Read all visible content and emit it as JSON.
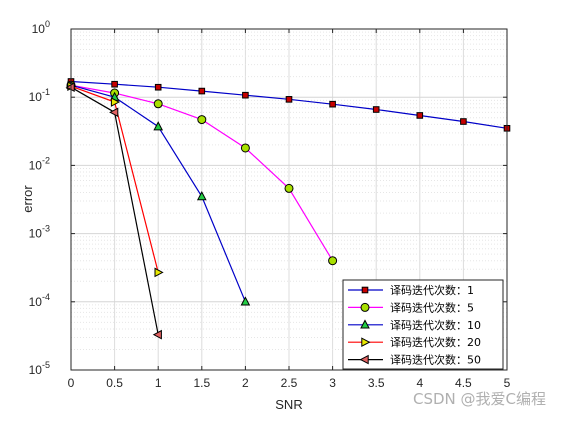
{
  "chart_data": {
    "type": "line",
    "xlabel": "SNR",
    "ylabel": "error",
    "xscale": "linear",
    "yscale": "log",
    "xlim": [
      0,
      5
    ],
    "ylim": [
      1e-05,
      1
    ],
    "grid": true,
    "minor_grid": true,
    "legend_position": "bottom-right",
    "x_ticks": [
      "0",
      "0.5",
      "1",
      "1.5",
      "2",
      "2.5",
      "3",
      "3.5",
      "4",
      "4.5",
      "5"
    ],
    "y_ticks": [
      {
        "base": "10",
        "exp": "0"
      },
      {
        "base": "10",
        "exp": "-1"
      },
      {
        "base": "10",
        "exp": "-2"
      },
      {
        "base": "10",
        "exp": "-3"
      },
      {
        "base": "10",
        "exp": "-4"
      },
      {
        "base": "10",
        "exp": "-5"
      }
    ],
    "series": [
      {
        "name": "译码迭代次数：1",
        "color": "#0000c8",
        "marker": "square",
        "marker_fill": "#c80000",
        "x": [
          0,
          0.5,
          1,
          1.5,
          2,
          2.5,
          3,
          3.5,
          4,
          4.5,
          5
        ],
        "y": [
          0.17,
          0.155,
          0.14,
          0.123,
          0.107,
          0.093,
          0.079,
          0.066,
          0.054,
          0.044,
          0.035
        ]
      },
      {
        "name": "译码迭代次数：5",
        "color": "#ff00ff",
        "marker": "circle",
        "marker_fill": "#a8e000",
        "x": [
          0,
          0.5,
          1,
          1.5,
          2,
          2.5,
          3
        ],
        "y": [
          0.15,
          0.115,
          0.08,
          0.047,
          0.018,
          0.0046,
          0.0004
        ]
      },
      {
        "name": "译码迭代次数：10",
        "color": "#0000c8",
        "marker": "triangle-up",
        "marker_fill": "#22cc44",
        "x": [
          0,
          0.5,
          1,
          1.5,
          2
        ],
        "y": [
          0.15,
          0.1,
          0.037,
          0.0035,
          0.0001
        ]
      },
      {
        "name": "译码迭代次数：20",
        "color": "#ff0000",
        "marker": "triangle-right",
        "marker_fill": "#e8e800",
        "x": [
          0,
          0.5,
          1
        ],
        "y": [
          0.145,
          0.085,
          0.00027
        ]
      },
      {
        "name": "译码迭代次数：50",
        "color": "#000000",
        "marker": "triangle-left",
        "marker_fill": "#e06060",
        "x": [
          0,
          0.5,
          1
        ],
        "y": [
          0.14,
          0.06,
          3.3e-05
        ]
      }
    ]
  },
  "watermark": "CSDN @我爱C编程"
}
